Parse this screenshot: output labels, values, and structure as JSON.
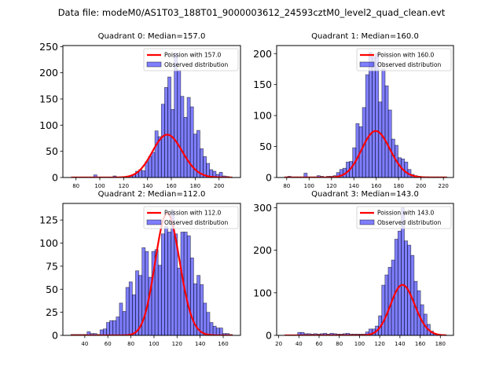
{
  "chart_data": {
    "type": "histogram-grid",
    "suptitle": "Data file: modeM0/AS1T03_188T01_9000003612_24593cztM0_level2_quad_clean.evt",
    "colors": {
      "bar_fill": "#0000ff",
      "bar_alpha": 0.5,
      "bar_edge": "#000000",
      "curve": "#ff0000"
    },
    "panels": [
      {
        "title": "Quadrant 0: Median=157.0",
        "legend": {
          "line": "Poission with 157.0",
          "bar": "Observed distribution",
          "placement": "upper right"
        },
        "xlim": [
          69,
          218
        ],
        "ylim": [
          0,
          252
        ],
        "xticks": [
          80,
          100,
          120,
          140,
          160,
          180,
          200
        ],
        "yticks": [
          0,
          50,
          100,
          150,
          200,
          250
        ],
        "bin_start": 76,
        "bin_width": 2.7,
        "counts": [
          1,
          1,
          0,
          1,
          1,
          0,
          1,
          5,
          1,
          1,
          1,
          1,
          1,
          3,
          1,
          1,
          1,
          2,
          3,
          5,
          12,
          15,
          13,
          30,
          40,
          48,
          89,
          78,
          140,
          172,
          192,
          130,
          238,
          205,
          155,
          115,
          153,
          135,
          83,
          90,
          55,
          40,
          27,
          15,
          12,
          6,
          10,
          3,
          2,
          1
        ],
        "poisson_mean": 157.0,
        "poisson_scale": 2570
      },
      {
        "title": "Quadrant 1: Median=160.0",
        "legend": {
          "line": "Poission with 160.0",
          "bar": "Observed distribution",
          "placement": "upper right"
        },
        "xlim": [
          71,
          229
        ],
        "ylim": [
          0,
          213
        ],
        "xticks": [
          80,
          100,
          120,
          140,
          160,
          180,
          200,
          220
        ],
        "yticks": [
          0,
          50,
          100,
          150,
          200
        ],
        "bin_start": 78,
        "bin_width": 2.9,
        "counts": [
          1,
          2,
          1,
          1,
          1,
          1,
          7,
          1,
          1,
          1,
          3,
          2,
          1,
          2,
          2,
          3,
          8,
          13,
          15,
          25,
          26,
          48,
          87,
          82,
          113,
          166,
          202,
          195,
          200,
          122,
          175,
          148,
          109,
          62,
          52,
          32,
          30,
          25,
          13,
          5,
          3,
          2,
          1,
          1,
          1,
          1,
          1,
          1,
          1,
          1
        ],
        "poisson_mean": 160.0,
        "poisson_scale": 2380
      },
      {
        "title": "Quadrant 2: Median=112.0",
        "legend": {
          "line": "Poission with 112.0",
          "bar": "Observed distribution",
          "placement": "upper right"
        },
        "xlim": [
          21,
          175
        ],
        "ylim": [
          0,
          143
        ],
        "xticks": [
          40,
          60,
          80,
          100,
          120,
          140,
          160
        ],
        "yticks": [
          0,
          25,
          50,
          75,
          100,
          125
        ],
        "bin_start": 28,
        "bin_width": 2.8,
        "counts": [
          1,
          1,
          1,
          1,
          1,
          4,
          2,
          2,
          1,
          6,
          7,
          14,
          16,
          16,
          20,
          35,
          26,
          52,
          58,
          44,
          70,
          65,
          95,
          91,
          63,
          91,
          93,
          76,
          110,
          118,
          112,
          136,
          110,
          73,
          112,
          112,
          108,
          84,
          56,
          65,
          55,
          35,
          25,
          14,
          10,
          8,
          8,
          2,
          2,
          1
        ],
        "poisson_mean": 112.0,
        "poisson_scale": 3510
      },
      {
        "title": "Quadrant 3: Median=143.0",
        "legend": {
          "line": "Poission with 143.0",
          "bar": "Observed distribution",
          "placement": "upper right"
        },
        "xlim": [
          18,
          193
        ],
        "ylim": [
          0,
          310
        ],
        "xticks": [
          20,
          40,
          60,
          80,
          100,
          120,
          140,
          160,
          180
        ],
        "yticks": [
          0,
          100,
          200,
          300
        ],
        "bin_start": 26,
        "bin_width": 3.2,
        "counts": [
          1,
          1,
          1,
          1,
          7,
          7,
          4,
          4,
          3,
          4,
          3,
          4,
          5,
          3,
          5,
          4,
          3,
          3,
          4,
          5,
          3,
          3,
          3,
          3,
          3,
          8,
          15,
          15,
          22,
          46,
          118,
          142,
          160,
          177,
          226,
          245,
          300,
          222,
          212,
          188,
          127,
          105,
          72,
          50,
          26,
          10,
          4,
          2,
          1,
          1
        ],
        "poisson_mean": 143.0,
        "poisson_scale": 3560
      }
    ]
  }
}
